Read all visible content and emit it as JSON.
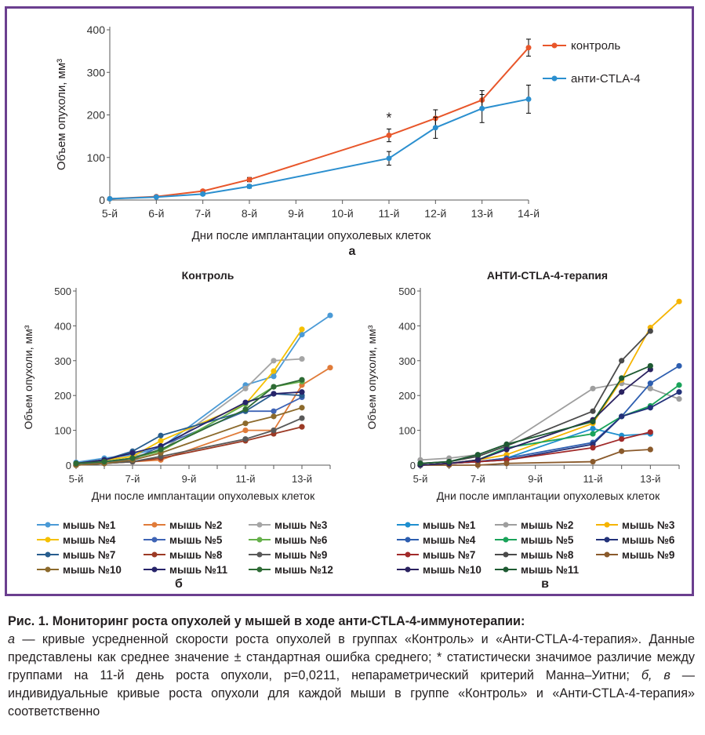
{
  "chart_data": [
    {
      "type": "line",
      "panel_label": "а",
      "xlabel": "Дни после имплантации опухолевых клеток",
      "ylabel": "Объем опухоли, мм³",
      "categories": [
        "5-й",
        "6-й",
        "7-й",
        "8-й",
        "9-й",
        "10-й",
        "11-й",
        "12-й",
        "13-й",
        "14-й"
      ],
      "ylim": [
        0,
        400
      ],
      "yticks": [
        0,
        100,
        200,
        300,
        400
      ],
      "legend_position": "right",
      "series": [
        {
          "name": "контроль",
          "color": "#e8562a",
          "x": [
            5,
            6,
            7,
            8,
            11,
            12,
            13,
            14
          ],
          "values": [
            3,
            8,
            21,
            48,
            152,
            192,
            235,
            358
          ],
          "err": [
            1,
            2,
            3,
            5,
            15,
            20,
            22,
            20
          ]
        },
        {
          "name": "анти-CTLA-4",
          "color": "#2b8fcf",
          "x": [
            5,
            6,
            7,
            8,
            11,
            12,
            13,
            14
          ],
          "values": [
            3,
            7,
            14,
            32,
            98,
            170,
            215,
            237
          ],
          "err": [
            1,
            2,
            3,
            4,
            16,
            25,
            33,
            33
          ]
        }
      ],
      "annotations": [
        {
          "text": "*",
          "x": 11,
          "y": 182
        }
      ]
    },
    {
      "type": "line",
      "title": "Контроль",
      "panel_label": "б",
      "xlabel": "Дни после имплантации опухолевых клеток",
      "ylabel": "Объем опухоли, мм³",
      "x": [
        5,
        6,
        7,
        8,
        11,
        12,
        13,
        14
      ],
      "xticks": [
        "5-й",
        "7-й",
        "9-й",
        "11-й",
        "13-й"
      ],
      "ylim": [
        0,
        500
      ],
      "yticks": [
        0,
        100,
        200,
        300,
        400,
        500
      ],
      "legend_position": "bottom",
      "series": [
        {
          "name": "мышь №1",
          "color": "#4a9ad6",
          "x": [
            5,
            6,
            7,
            8,
            11,
            12,
            13,
            14
          ],
          "values": [
            8,
            20,
            30,
            50,
            230,
            255,
            375,
            430
          ]
        },
        {
          "name": "мышь №2",
          "color": "#e07b39",
          "x": [
            5,
            6,
            7,
            8,
            11,
            12,
            13,
            14
          ],
          "values": [
            0,
            5,
            10,
            15,
            100,
            100,
            230,
            280
          ]
        },
        {
          "name": "мышь №3",
          "color": "#a5a5a5",
          "x": [
            5,
            6,
            7,
            8,
            11,
            12,
            13
          ],
          "values": [
            5,
            15,
            25,
            40,
            220,
            300,
            305
          ]
        },
        {
          "name": "мышь №4",
          "color": "#f5c000",
          "x": [
            5,
            6,
            7,
            8,
            11,
            12,
            13
          ],
          "values": [
            5,
            15,
            25,
            70,
            175,
            270,
            390
          ]
        },
        {
          "name": "мышь №5",
          "color": "#3f64b5",
          "x": [
            5,
            6,
            7,
            8,
            11,
            12,
            13
          ],
          "values": [
            0,
            10,
            15,
            55,
            155,
            155,
            195
          ]
        },
        {
          "name": "мышь №6",
          "color": "#65b04a",
          "x": [
            5,
            6,
            7,
            8,
            11,
            12,
            13
          ],
          "values": [
            5,
            10,
            20,
            40,
            175,
            225,
            240
          ]
        },
        {
          "name": "мышь №7",
          "color": "#275d8e",
          "x": [
            5,
            6,
            7,
            8,
            11,
            12,
            13
          ],
          "values": [
            5,
            15,
            40,
            85,
            155,
            205,
            200
          ]
        },
        {
          "name": "мышь №8",
          "color": "#9c3a25",
          "x": [
            5,
            6,
            7,
            8,
            11,
            12,
            13
          ],
          "values": [
            0,
            5,
            10,
            20,
            70,
            90,
            110
          ]
        },
        {
          "name": "мышь №9",
          "color": "#595959",
          "x": [
            5,
            6,
            7,
            8,
            11,
            12,
            13
          ],
          "values": [
            0,
            5,
            10,
            25,
            75,
            100,
            135
          ]
        },
        {
          "name": "мышь №10",
          "color": "#8c6a2c",
          "x": [
            5,
            6,
            7,
            8,
            11,
            12,
            13
          ],
          "values": [
            0,
            5,
            15,
            35,
            120,
            140,
            165
          ]
        },
        {
          "name": "мышь №11",
          "color": "#27246a",
          "x": [
            5,
            6,
            7,
            8,
            11,
            12,
            13
          ],
          "values": [
            5,
            15,
            35,
            55,
            180,
            205,
            210
          ]
        },
        {
          "name": "мышь №12",
          "color": "#2e6b35",
          "x": [
            5,
            6,
            7,
            8,
            11,
            12,
            13
          ],
          "values": [
            5,
            10,
            20,
            45,
            160,
            225,
            245
          ]
        }
      ]
    },
    {
      "type": "line",
      "title": "АНТИ-CTLA-4-терапия",
      "panel_label": "в",
      "xlabel": "Дни после имплантации опухолевых клеток",
      "ylabel": "Объем опухоли, мм³",
      "x": [
        5,
        6,
        7,
        8,
        11,
        12,
        13,
        14
      ],
      "xticks": [
        "5-й",
        "7-й",
        "9-й",
        "11-й",
        "13-й"
      ],
      "ylim": [
        0,
        500
      ],
      "yticks": [
        0,
        100,
        200,
        300,
        400,
        500
      ],
      "legend_position": "bottom",
      "series": [
        {
          "name": "мышь №1",
          "color": "#1f8fcf",
          "x": [
            5,
            6,
            7,
            8,
            11,
            12,
            13
          ],
          "values": [
            0,
            5,
            10,
            20,
            105,
            85,
            90
          ]
        },
        {
          "name": "мышь №2",
          "color": "#9e9e9e",
          "x": [
            5,
            6,
            7,
            8,
            11,
            12,
            13,
            14
          ],
          "values": [
            15,
            20,
            30,
            60,
            220,
            235,
            220,
            190
          ]
        },
        {
          "name": "мышь №3",
          "color": "#f5b400",
          "x": [
            5,
            6,
            7,
            8,
            11,
            12,
            13,
            14
          ],
          "values": [
            0,
            5,
            15,
            30,
            120,
            245,
            395,
            470
          ]
        },
        {
          "name": "мышь №4",
          "color": "#2d5eb0",
          "x": [
            5,
            6,
            7,
            8,
            11,
            12,
            13,
            14
          ],
          "values": [
            0,
            5,
            10,
            20,
            65,
            140,
            235,
            285
          ]
        },
        {
          "name": "мышь №5",
          "color": "#1aa35a",
          "x": [
            5,
            6,
            7,
            8,
            11,
            12,
            13,
            14
          ],
          "values": [
            0,
            5,
            15,
            50,
            90,
            140,
            170,
            230
          ]
        },
        {
          "name": "мышь №6",
          "color": "#23327a",
          "x": [
            5,
            6,
            7,
            8,
            11,
            12,
            13,
            14
          ],
          "values": [
            0,
            5,
            10,
            15,
            60,
            140,
            165,
            210
          ]
        },
        {
          "name": "мышь №7",
          "color": "#a12a2a",
          "x": [
            5,
            6,
            7,
            8,
            11,
            12,
            13
          ],
          "values": [
            0,
            5,
            10,
            15,
            50,
            75,
            95
          ]
        },
        {
          "name": "мышь №8",
          "color": "#4a4a4a",
          "x": [
            5,
            6,
            7,
            8,
            11,
            12,
            13
          ],
          "values": [
            5,
            10,
            25,
            55,
            155,
            300,
            385
          ]
        },
        {
          "name": "мышь №9",
          "color": "#8a5a2b",
          "x": [
            5,
            6,
            7,
            8,
            11,
            12,
            13
          ],
          "values": [
            0,
            0,
            0,
            5,
            10,
            40,
            45
          ]
        },
        {
          "name": "мышь №10",
          "color": "#2b2260",
          "x": [
            5,
            6,
            7,
            8,
            11,
            12,
            13
          ],
          "values": [
            0,
            5,
            15,
            45,
            130,
            210,
            275
          ]
        },
        {
          "name": "мышь №11",
          "color": "#1e5a32",
          "x": [
            5,
            6,
            7,
            8,
            11,
            12,
            13
          ],
          "values": [
            5,
            10,
            30,
            60,
            125,
            250,
            285
          ]
        }
      ]
    }
  ],
  "caption": {
    "title": "Рис. 1. Мониторинг роста опухолей у мышей в ходе анти-CTLA-4-иммунотерапии:",
    "lines": [
      {
        "italic": "а",
        "text": " — кривые усредненной скорости роста опухолей в группах «Контроль» и «Анти-CTLA-4-терапия». Данные представлены как среднее значение ± стандартная ошибка среднего; * статистически значимое различие между группами на 11-й день роста опухоли, p=0,0211, непараметрический критерий Манна–Уитни; "
      },
      {
        "italic": "б, в",
        "text": " — индивидуальные кривые роста опухоли для каждой мыши в группе «Контроль» и «Анти-CTLA-4-терапия» соответственно"
      }
    ]
  }
}
